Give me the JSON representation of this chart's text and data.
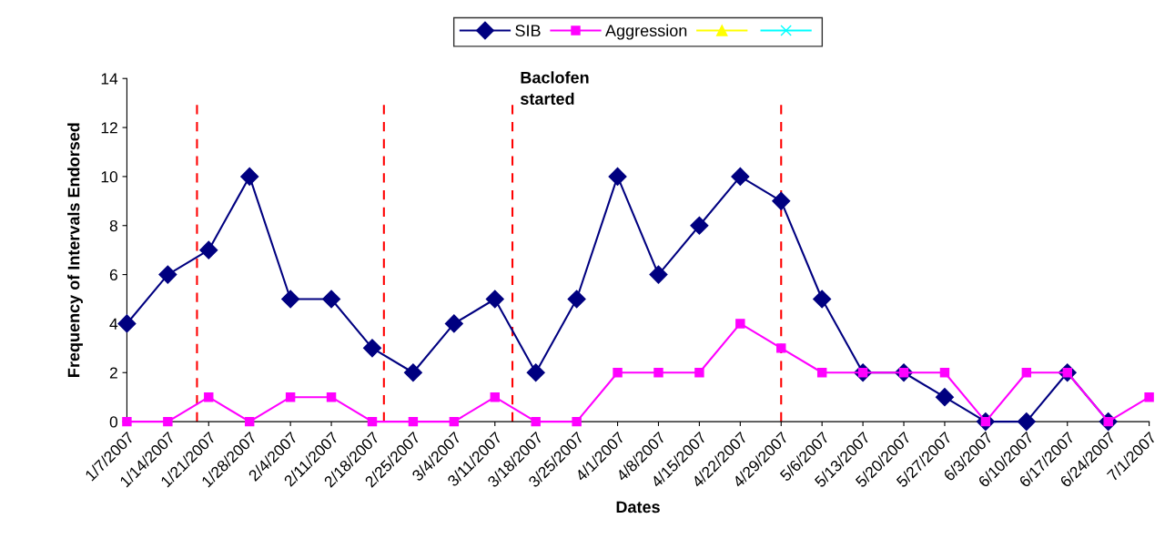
{
  "chart_data": {
    "type": "line",
    "x": [
      "2007-01-07",
      "2007-01-14",
      "2007-01-21",
      "2007-01-28",
      "2007-02-04",
      "2007-02-11",
      "2007-02-18",
      "2007-02-25",
      "2007-03-04",
      "2007-03-11",
      "2007-03-18",
      "2007-03-25",
      "2007-04-01",
      "2007-04-08",
      "2007-04-15",
      "2007-04-22",
      "2007-04-29",
      "2007-05-06",
      "2007-05-13",
      "2007-05-20",
      "2007-05-27",
      "2007-06-03",
      "2007-06-10",
      "2007-06-17",
      "2007-06-24",
      "2007-07-01"
    ],
    "series": [
      {
        "name": "SIB",
        "color": "#000080",
        "marker": "diamond",
        "values": [
          4,
          6,
          7,
          10,
          5,
          5,
          3,
          2,
          4,
          5,
          2,
          5,
          10,
          6,
          8,
          10,
          9,
          5,
          2,
          2,
          1,
          0,
          0,
          2,
          0,
          null
        ]
      },
      {
        "name": "Aggression",
        "color": "#ff00ff",
        "marker": "square",
        "values": [
          0,
          0,
          1,
          0,
          1,
          1,
          0,
          0,
          0,
          1,
          0,
          0,
          2,
          2,
          2,
          4,
          3,
          2,
          2,
          2,
          2,
          0,
          2,
          2,
          0,
          1
        ]
      },
      {
        "color": "#ffff00",
        "marker": "triangle",
        "values": [
          null,
          null,
          null,
          null,
          null,
          null,
          null,
          null,
          null,
          null,
          null,
          null,
          null,
          null,
          null,
          null,
          null,
          null,
          null,
          null,
          null,
          null,
          null,
          null,
          null,
          null
        ]
      },
      {
        "color": "#00ffff",
        "marker": "cross",
        "values": [
          null,
          null,
          null,
          null,
          null,
          null,
          null,
          null,
          null,
          null,
          null,
          null,
          null,
          null,
          null,
          null,
          null,
          null,
          null,
          null,
          null,
          null,
          null,
          null,
          null,
          null
        ]
      }
    ],
    "xlabel": "Dates",
    "ylabel": "Frequency of Intervals Endorsed",
    "xlim": [
      "2007-01-07",
      "2007-07-01"
    ],
    "xticks": [
      {
        "value": "2007-01-07",
        "label": "1/7/2007"
      },
      {
        "value": "2007-01-14",
        "label": "1/14/2007"
      },
      {
        "value": "2007-01-21",
        "label": "1/21/2007"
      },
      {
        "value": "2007-01-28",
        "label": "1/28/2007"
      },
      {
        "value": "2007-02-04",
        "label": "2/4/2007"
      },
      {
        "value": "2007-02-11",
        "label": "2/11/2007"
      },
      {
        "value": "2007-02-18",
        "label": "2/18/2007"
      },
      {
        "value": "2007-02-25",
        "label": "2/25/2007"
      },
      {
        "value": "2007-03-04",
        "label": "3/4/2007"
      },
      {
        "value": "2007-03-11",
        "label": "3/11/2007"
      },
      {
        "value": "2007-03-18",
        "label": "3/18/2007"
      },
      {
        "value": "2007-03-25",
        "label": "3/25/2007"
      },
      {
        "value": "2007-04-01",
        "label": "4/1/2007"
      },
      {
        "value": "2007-04-08",
        "label": "4/8/2007"
      },
      {
        "value": "2007-04-15",
        "label": "4/15/2007"
      },
      {
        "value": "2007-04-22",
        "label": "4/22/2007"
      },
      {
        "value": "2007-04-29",
        "label": "4/29/2007"
      },
      {
        "value": "2007-05-06",
        "label": "5/6/2007"
      },
      {
        "value": "2007-05-13",
        "label": "5/13/2007"
      },
      {
        "value": "2007-05-20",
        "label": "5/20/2007"
      },
      {
        "value": "2007-05-27",
        "label": "5/27/2007"
      },
      {
        "value": "2007-06-03",
        "label": "6/3/2007"
      },
      {
        "value": "2007-06-10",
        "label": "6/10/2007"
      },
      {
        "value": "2007-06-17",
        "label": "6/17/2007"
      },
      {
        "value": "2007-06-24",
        "label": "6/24/2007"
      },
      {
        "value": "2007-07-01",
        "label": "7/1/2007"
      }
    ],
    "ylim": [
      0,
      14
    ],
    "yticks": [
      0,
      2,
      4,
      6,
      8,
      10,
      12,
      14
    ],
    "ref_lines": [
      {
        "axis": "x",
        "value": "2007-01-19",
        "color": "#ff0000",
        "line_style": "dashed"
      },
      {
        "axis": "x",
        "value": "2007-02-20",
        "color": "#ff0000",
        "line_style": "dashed"
      },
      {
        "axis": "x",
        "value": "2007-03-14",
        "label": "Baclofen\nstarted",
        "color": "#ff0000",
        "line_style": "dashed"
      },
      {
        "axis": "x",
        "value": "2007-04-29",
        "color": "#ff0000",
        "line_style": "dashed"
      }
    ],
    "grid": false,
    "legend": "top",
    "line_style": "solid"
  }
}
